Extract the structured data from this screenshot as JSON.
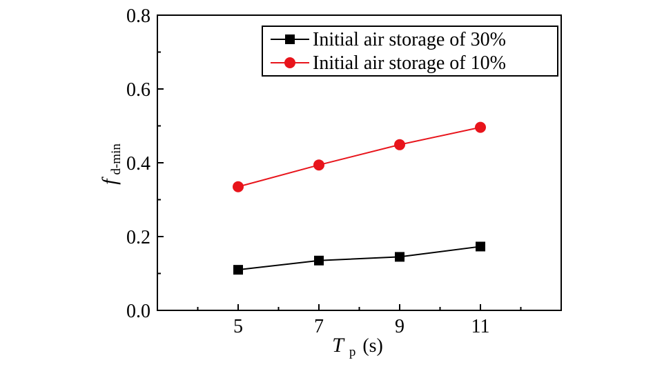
{
  "chart_data": {
    "type": "line",
    "x": [
      5,
      7,
      9,
      11
    ],
    "xticks": [
      5,
      7,
      9,
      11
    ],
    "yticks": [
      "0.0",
      "0.2",
      "0.4",
      "0.6",
      "0.8"
    ],
    "xlim": [
      3.0,
      13.0
    ],
    "ylim": [
      0.0,
      0.8
    ],
    "xlabel_main": "T",
    "xlabel_sub": "p",
    "xlabel_unit": "(s)",
    "ylabel_main": "f",
    "ylabel_sub": "d-min",
    "legend_position": "top-right",
    "grid": false,
    "series": [
      {
        "name": "Initial air storage of 30%",
        "values": [
          0.11,
          0.135,
          0.145,
          0.173
        ],
        "color": "#000000",
        "marker": "square"
      },
      {
        "name": "Initial air storage of 10%",
        "values": [
          0.335,
          0.394,
          0.449,
          0.496
        ],
        "color": "#e8141b",
        "marker": "circle"
      }
    ]
  }
}
